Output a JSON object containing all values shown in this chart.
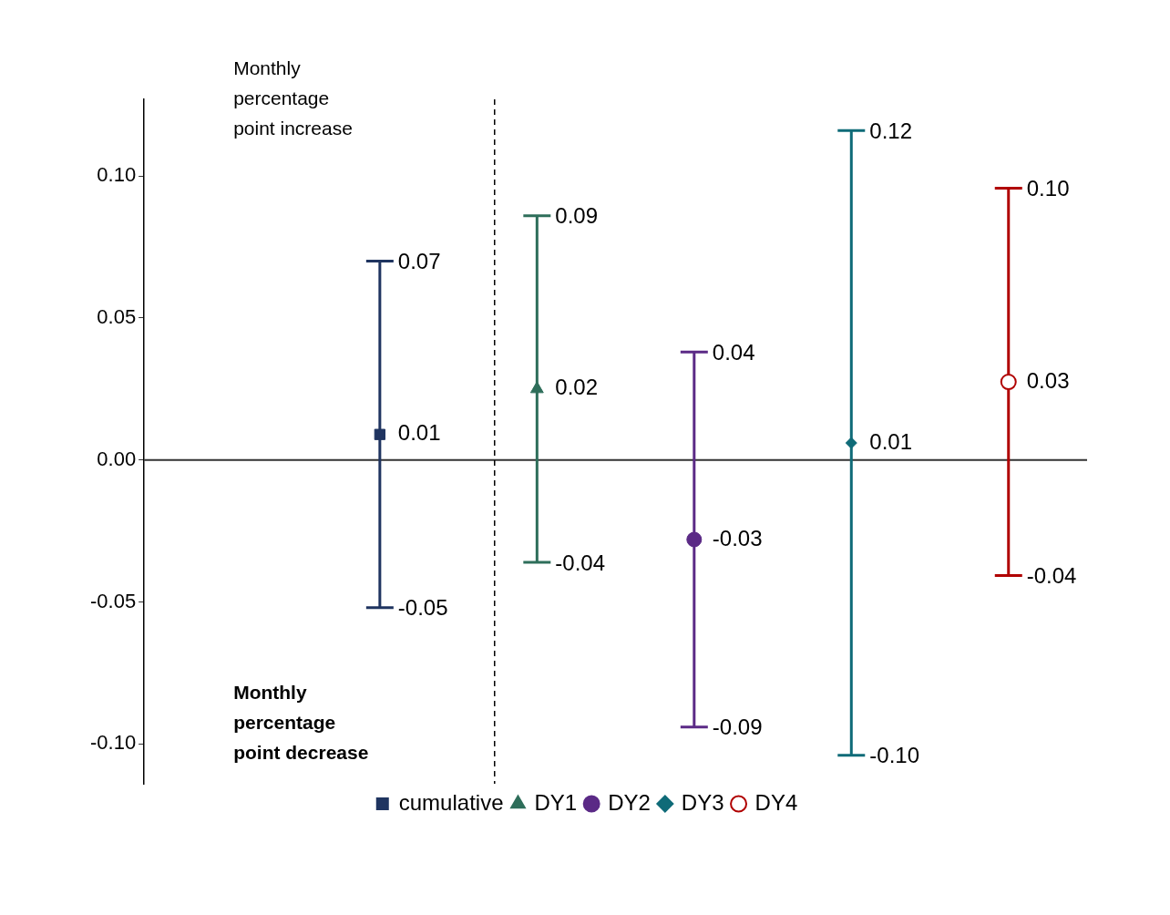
{
  "chart_data": {
    "type": "scatter",
    "categories": [
      null,
      null,
      null,
      null,
      null,
      null
    ],
    "series": [
      {
        "name": "cumulative",
        "color": "#1f3460",
        "marker": "square",
        "values": [
          null,
          0.009,
          null,
          null,
          null,
          null
        ],
        "errors": [
          null,
          [
            -0.052,
            0.07
          ],
          null,
          null,
          null,
          null
        ],
        "value_labels": [
          null,
          "0.01",
          null,
          null,
          null,
          null
        ]
      },
      {
        "name": "DY1",
        "color": "#2e6e5a",
        "marker": "triangle",
        "values": [
          null,
          null,
          0.025,
          null,
          null,
          null
        ],
        "errors": [
          null,
          null,
          [
            -0.036,
            0.086
          ],
          null,
          null,
          null
        ],
        "value_labels": [
          null,
          null,
          "0.02",
          null,
          null,
          null
        ]
      },
      {
        "name": "DY2",
        "color": "#5b2a86",
        "marker": "circle",
        "values": [
          null,
          null,
          null,
          -0.028,
          null,
          null
        ],
        "errors": [
          null,
          null,
          null,
          [
            -0.094,
            0.038
          ],
          null,
          null
        ],
        "value_labels": [
          null,
          null,
          null,
          "-0.03",
          null,
          null
        ]
      },
      {
        "name": "DY3",
        "color": "#0f6b78",
        "marker": "diamond",
        "values": [
          null,
          null,
          null,
          null,
          0.006,
          null
        ],
        "errors": [
          null,
          null,
          null,
          null,
          [
            -0.104,
            0.116
          ],
          null
        ],
        "value_labels": [
          null,
          null,
          null,
          null,
          "0.01",
          null
        ]
      },
      {
        "name": "DY4",
        "color": "#b00000",
        "marker": "circle",
        "values": [
          null,
          null,
          null,
          null,
          null,
          0.0275
        ],
        "errors": [
          null,
          null,
          null,
          null,
          null,
          [
            -0.0407,
            0.0957
          ]
        ],
        "value_labels": [
          null,
          null,
          null,
          null,
          null,
          "0.03"
        ]
      }
    ],
    "ylim": [
      -0.114,
      0.127
    ],
    "yticks": [
      {
        "value": -0.1,
        "label": "-0.10"
      },
      {
        "value": -0.05,
        "label": "-0.05"
      },
      {
        "value": 0,
        "label": "0.00"
      },
      {
        "value": 0.05,
        "label": "0.05"
      },
      {
        "value": 0.1,
        "label": "0.10"
      }
    ],
    "ref_lines": [
      {
        "axis": "y",
        "value": 0,
        "color": "#333333",
        "line_style": "solid"
      }
    ],
    "annotations": [
      "Monthly percentage point increase",
      "Monthly percentage point decrease",
      "-0.05",
      "0.07",
      "-0.04",
      "0.09",
      "-0.09",
      "0.04",
      "-0.10",
      "0.12",
      "-0.04",
      "0.10"
    ],
    "grid": false,
    "legend": "bottom",
    "tick_labels": "y"
  }
}
